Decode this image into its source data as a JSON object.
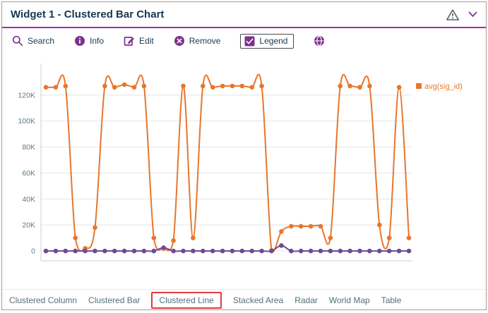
{
  "theme": {
    "accent": "#a62ba8",
    "icon-purple": "#7d3190",
    "navy": "#17384f",
    "warning": "#5a6066",
    "tab-red": "#e03a3a"
  },
  "header": {
    "title": "Widget 1 - Clustered Bar Chart"
  },
  "toolbar": {
    "items": [
      {
        "label": "Search"
      },
      {
        "label": "Info"
      },
      {
        "label": "Edit"
      },
      {
        "label": "Remove"
      },
      {
        "label": "Legend",
        "checked": true
      },
      {
        "label": ""
      }
    ]
  },
  "chart_data": {
    "type": "line",
    "title": "",
    "x_labels_visible": false,
    "grid": true,
    "ylim": [
      0,
      140000
    ],
    "y_ticks": [
      0,
      20000,
      40000,
      60000,
      80000,
      100000,
      120000
    ],
    "y_tick_labels": [
      "0",
      "20K",
      "40K",
      "60K",
      "80K",
      "100K",
      "120K"
    ],
    "legend": {
      "position": "top-right",
      "entries": [
        "avg(sig_id)"
      ]
    },
    "series": [
      {
        "name": "avg(sig_id)",
        "color": "#e8762c",
        "values": [
          126000,
          126000,
          127000,
          10000,
          2000,
          18000,
          127000,
          126000,
          128000,
          126000,
          127000,
          10000,
          2000,
          8000,
          127000,
          10000,
          127000,
          126000,
          127000,
          127000,
          127000,
          126000,
          127000,
          500,
          15000,
          19000,
          19000,
          19000,
          19000,
          10000,
          127000,
          127000,
          126000,
          127000,
          20000,
          10000,
          126000,
          10000
        ]
      },
      {
        "name": "",
        "color": "#6e4b96",
        "values": [
          0,
          0,
          0,
          0,
          0,
          0,
          0,
          0,
          0,
          0,
          0,
          0,
          2500,
          0,
          0,
          0,
          0,
          0,
          0,
          0,
          0,
          0,
          0,
          0,
          4200,
          0,
          0,
          0,
          0,
          0,
          0,
          0,
          0,
          0,
          0,
          0,
          0,
          0
        ]
      }
    ]
  },
  "tabs": {
    "items": [
      "Clustered Column",
      "Clustered Bar",
      "Clustered Line",
      "Stacked Area",
      "Radar",
      "World Map",
      "Table"
    ],
    "active": "Clustered Line"
  }
}
